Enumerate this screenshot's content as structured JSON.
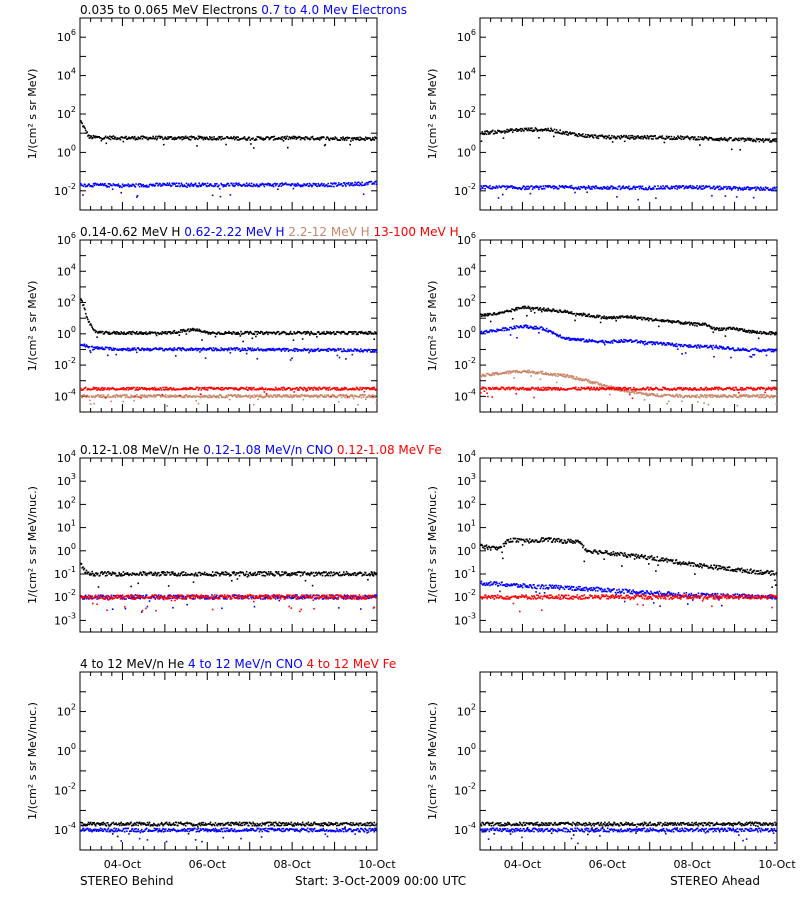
{
  "colors": {
    "black": "#000000",
    "blue": "#0000ff",
    "tan": "#c8866a",
    "red": "#ff0000"
  },
  "x_axis": {
    "ticks": [
      {
        "day": 1,
        "label": "04-Oct"
      },
      {
        "day": 3,
        "label": "06-Oct"
      },
      {
        "day": 5,
        "label": "08-Oct"
      },
      {
        "day": 7,
        "label": "10-Oct"
      }
    ],
    "xlim_days": [
      0,
      7
    ]
  },
  "footer": {
    "left": "STEREO Behind",
    "center": "Start:  3-Oct-2009 00:00 UTC",
    "right": "STEREO Ahead"
  },
  "rows": [
    {
      "legend": [
        {
          "text": "0.035 to 0.065 MeV Electrons",
          "color": "#000000"
        },
        {
          "text": "0.7 to 4.0 Mev Electrons",
          "color": "#0000ff"
        }
      ],
      "ylabel": "1/(cm² s sr MeV)",
      "ylim_exp": [
        -3,
        7
      ],
      "yticks": [
        {
          "exp": 6,
          "base": "10",
          "sup": "6"
        },
        {
          "exp": 4,
          "base": "10",
          "sup": "4"
        },
        {
          "exp": 2,
          "base": "10",
          "sup": "2"
        },
        {
          "exp": 0,
          "base": "10",
          "sup": "0"
        },
        {
          "exp": -2,
          "base": "10",
          "sup": "-2"
        }
      ]
    },
    {
      "legend": [
        {
          "text": "0.14-0.62 MeV H",
          "color": "#000000"
        },
        {
          "text": "0.62-2.22 MeV H",
          "color": "#0000ff"
        },
        {
          "text": "2.2-12 MeV H",
          "color": "#c8866a"
        },
        {
          "text": "13-100 MeV H",
          "color": "#ff0000"
        }
      ],
      "ylabel": "1/(cm² s sr MeV)",
      "ylim_exp": [
        -5,
        6
      ],
      "yticks": [
        {
          "exp": 6,
          "base": "10",
          "sup": "6"
        },
        {
          "exp": 4,
          "base": "10",
          "sup": "4"
        },
        {
          "exp": 2,
          "base": "10",
          "sup": "2"
        },
        {
          "exp": 0,
          "base": "10",
          "sup": "0"
        },
        {
          "exp": -2,
          "base": "10",
          "sup": "-2"
        },
        {
          "exp": -4,
          "base": "10",
          "sup": "-4"
        }
      ]
    },
    {
      "legend": [
        {
          "text": "0.12-1.08 MeV/n He",
          "color": "#000000"
        },
        {
          "text": "0.12-1.08 MeV/n CNO",
          "color": "#0000ff"
        },
        {
          "text": "0.12-1.08 MeV Fe",
          "color": "#ff0000"
        }
      ],
      "ylabel": "1/(cm² s sr MeV/nuc.)",
      "ylim_exp": [
        -3.5,
        4
      ],
      "yticks": [
        {
          "exp": 4,
          "base": "10",
          "sup": "4"
        },
        {
          "exp": 3,
          "base": "10",
          "sup": "3"
        },
        {
          "exp": 2,
          "base": "10",
          "sup": "2"
        },
        {
          "exp": 1,
          "base": "10",
          "sup": "1"
        },
        {
          "exp": 0,
          "base": "10",
          "sup": "0"
        },
        {
          "exp": -1,
          "base": "10",
          "sup": "-1"
        },
        {
          "exp": -2,
          "base": "10",
          "sup": "-2"
        },
        {
          "exp": -3,
          "base": "10",
          "sup": "-3"
        }
      ]
    },
    {
      "legend": [
        {
          "text": "4 to 12 MeV/n He",
          "color": "#000000"
        },
        {
          "text": "4 to 12 MeV/n CNO",
          "color": "#0000ff"
        },
        {
          "text": "4 to 12 MeV Fe",
          "color": "#ff0000"
        }
      ],
      "ylabel": "1/(cm² s sr MeV/nuc.)",
      "ylim_exp": [
        -5,
        4
      ],
      "yticks": [
        {
          "exp": 2,
          "base": "10",
          "sup": "2"
        },
        {
          "exp": 0,
          "base": "10",
          "sup": "0"
        },
        {
          "exp": -2,
          "base": "10",
          "sup": "-2"
        },
        {
          "exp": -4,
          "base": "10",
          "sup": "-4"
        }
      ]
    }
  ],
  "chart_data": [
    {
      "type": "scatter",
      "panel": "electrons-behind",
      "y_scale": "log",
      "series": [
        {
          "color": "#000000",
          "x": [
            0,
            0.2,
            1,
            2,
            3,
            4,
            5,
            6,
            7
          ],
          "y": [
            40,
            6,
            5.5,
            5.5,
            5.5,
            5.2,
            5.5,
            5.2,
            5
          ]
        },
        {
          "color": "#0000ff",
          "x": [
            0,
            1,
            2,
            3,
            4,
            5,
            6,
            7
          ],
          "y": [
            0.02,
            0.018,
            0.02,
            0.02,
            0.02,
            0.02,
            0.02,
            0.025
          ]
        }
      ]
    },
    {
      "type": "scatter",
      "panel": "electrons-ahead",
      "y_scale": "log",
      "series": [
        {
          "color": "#000000",
          "x": [
            0,
            0.5,
            1,
            1.6,
            2,
            2.5,
            3,
            4,
            5,
            6,
            7
          ],
          "y": [
            10,
            12,
            15,
            15,
            10,
            7,
            6,
            6,
            5.5,
            4.5,
            4
          ]
        },
        {
          "color": "#0000ff",
          "x": [
            0,
            1,
            2,
            3,
            4,
            5,
            6,
            7
          ],
          "y": [
            0.015,
            0.014,
            0.015,
            0.014,
            0.014,
            0.015,
            0.013,
            0.012
          ]
        }
      ]
    },
    {
      "type": "scatter",
      "panel": "protons-behind",
      "y_scale": "log",
      "series": [
        {
          "color": "#000000",
          "x": [
            0,
            0.1,
            0.2,
            0.3,
            0.5,
            1,
            2,
            2.7,
            3,
            4,
            5,
            6,
            7
          ],
          "y": [
            200,
            30,
            5,
            1.5,
            1.1,
            1.1,
            1.1,
            1.8,
            1.1,
            1.1,
            1.1,
            1.1,
            1.1
          ]
        },
        {
          "color": "#0000ff",
          "x": [
            0,
            0.3,
            1,
            2,
            3,
            4,
            5,
            6,
            7
          ],
          "y": [
            0.2,
            0.12,
            0.1,
            0.1,
            0.1,
            0.1,
            0.09,
            0.09,
            0.08
          ]
        },
        {
          "color": "#c8866a",
          "x": [
            0,
            7
          ],
          "y": [
            0.0001,
            0.0001
          ]
        },
        {
          "color": "#ff0000",
          "x": [
            0,
            1,
            2,
            3,
            4,
            5,
            6,
            7
          ],
          "y": [
            0.0003,
            0.0003,
            0.0003,
            0.0003,
            0.0003,
            0.0003,
            0.0003,
            0.0003
          ]
        }
      ]
    },
    {
      "type": "scatter",
      "panel": "protons-ahead",
      "y_scale": "log",
      "series": [
        {
          "color": "#000000",
          "x": [
            0,
            0.5,
            1,
            1.5,
            2,
            2.5,
            3,
            3.5,
            4,
            4.5,
            5,
            5.3,
            5.5,
            6,
            6.5,
            7
          ],
          "y": [
            15,
            20,
            50,
            35,
            25,
            15,
            10,
            12,
            8,
            6,
            4,
            4,
            2,
            2,
            1.2,
            1
          ]
        },
        {
          "color": "#0000ff",
          "x": [
            0,
            0.5,
            1,
            1.5,
            2,
            2.5,
            3,
            3.5,
            4,
            4.5,
            5,
            5.5,
            6,
            6.5,
            7
          ],
          "y": [
            1.2,
            1.8,
            3,
            2,
            0.5,
            0.35,
            0.3,
            0.35,
            0.25,
            0.2,
            0.15,
            0.15,
            0.1,
            0.09,
            0.08
          ]
        },
        {
          "color": "#c8866a",
          "x": [
            0,
            0.5,
            1,
            1.5,
            2,
            2.5,
            3,
            3.5,
            4,
            5,
            6,
            7
          ],
          "y": [
            0.002,
            0.003,
            0.004,
            0.003,
            0.002,
            0.001,
            0.0004,
            0.0002,
            0.00012,
            0.0001,
            0.0001,
            0.0001
          ]
        },
        {
          "color": "#ff0000",
          "x": [
            0,
            1,
            2,
            3,
            4,
            5,
            6,
            7
          ],
          "y": [
            0.0003,
            0.0003,
            0.0003,
            0.0003,
            0.0003,
            0.0003,
            0.0003,
            0.0003
          ]
        }
      ]
    },
    {
      "type": "scatter",
      "panel": "suprathermal-behind",
      "y_scale": "log",
      "series": [
        {
          "color": "#000000",
          "x": [
            0,
            0.1,
            0.3,
            1,
            2,
            3,
            4,
            5,
            6,
            7
          ],
          "y": [
            0.3,
            0.12,
            0.1,
            0.1,
            0.1,
            0.1,
            0.1,
            0.1,
            0.1,
            0.1
          ]
        },
        {
          "color": "#0000ff",
          "x": [
            0,
            1,
            2,
            3,
            4,
            5,
            6,
            7
          ],
          "y": [
            0.01,
            0.01,
            0.01,
            0.01,
            0.01,
            0.01,
            0.01,
            0.01
          ]
        },
        {
          "color": "#ff0000",
          "x": [
            0,
            1,
            2,
            3,
            4,
            5,
            6,
            7
          ],
          "y": [
            0.01,
            0.01,
            0.01,
            0.01,
            0.01,
            0.01,
            0.01,
            0.01
          ]
        }
      ]
    },
    {
      "type": "scatter",
      "panel": "suprathermal-ahead",
      "y_scale": "log",
      "series": [
        {
          "color": "#000000",
          "x": [
            0,
            0.4,
            0.7,
            1,
            1.5,
            2,
            2.3,
            2.5,
            3,
            3.5,
            4,
            4.5,
            5,
            6,
            7
          ],
          "y": [
            1.5,
            1.2,
            3,
            2.5,
            3,
            2.5,
            2.5,
            1,
            0.8,
            0.6,
            0.5,
            0.35,
            0.25,
            0.15,
            0.1
          ]
        },
        {
          "color": "#0000ff",
          "x": [
            0,
            0.5,
            1,
            2,
            3,
            4,
            5,
            6,
            7
          ],
          "y": [
            0.04,
            0.035,
            0.03,
            0.025,
            0.02,
            0.015,
            0.012,
            0.011,
            0.01
          ]
        },
        {
          "color": "#ff0000",
          "x": [
            0,
            1,
            2,
            3,
            4,
            5,
            6,
            7
          ],
          "y": [
            0.01,
            0.01,
            0.01,
            0.01,
            0.01,
            0.01,
            0.01,
            0.01
          ]
        }
      ]
    },
    {
      "type": "scatter",
      "panel": "high-energy-behind",
      "y_scale": "log",
      "series": [
        {
          "color": "#000000",
          "x": [
            0.2,
            1,
            2,
            3,
            4,
            5,
            6,
            7
          ],
          "y": [
            0.0002,
            0.0002,
            0.0002,
            0.0002,
            0.0002,
            0.0002,
            0.0002,
            0.0002
          ]
        },
        {
          "color": "#0000ff",
          "x": [
            0,
            7
          ],
          "y": [
            0.0001,
            0.0001
          ]
        }
      ]
    },
    {
      "type": "scatter",
      "panel": "high-energy-ahead",
      "y_scale": "log",
      "series": [
        {
          "color": "#000000",
          "x": [
            0,
            1,
            2,
            3,
            4,
            5,
            6
          ],
          "y": [
            0.0002,
            0.0002,
            0.0002,
            0.0002,
            0.0002,
            0.0002,
            0.0002
          ]
        },
        {
          "color": "#0000ff",
          "x": [
            0,
            7
          ],
          "y": [
            0.0001,
            0.0001
          ]
        }
      ]
    }
  ]
}
